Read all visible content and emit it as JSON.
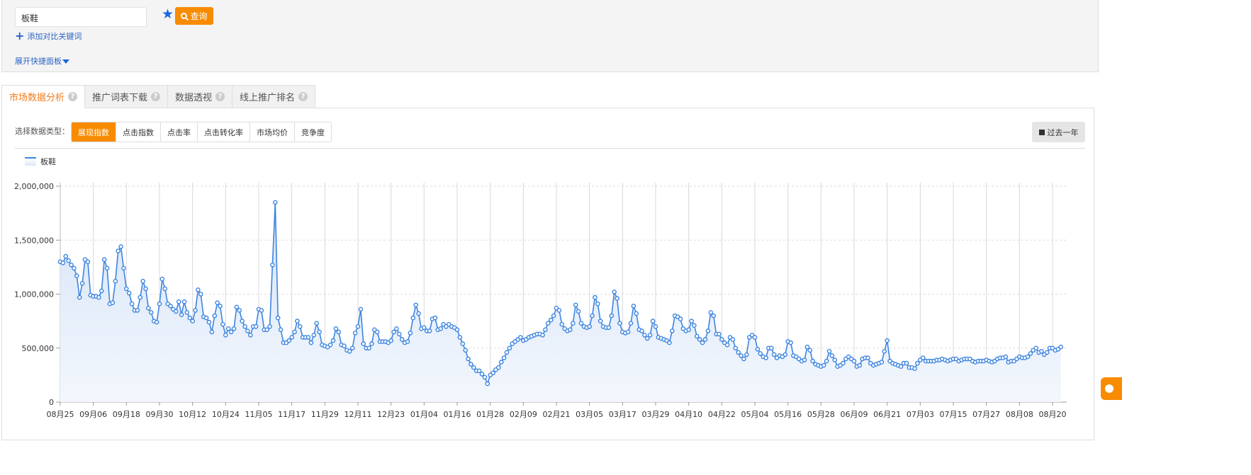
{
  "search": {
    "keyword": "板鞋",
    "query_label": "查询",
    "add_compare_label": "添加对比关键词",
    "expand_panel_label": "展开快捷面板"
  },
  "tabs": [
    {
      "label": "市场数据分析",
      "active": true
    },
    {
      "label": "推广词表下载",
      "active": false
    },
    {
      "label": "数据透视",
      "active": false
    },
    {
      "label": "线上推广排名",
      "active": false
    }
  ],
  "help_glyph": "?",
  "data_type": {
    "label": "选择数据类型：",
    "options": [
      "展现指数",
      "点击指数",
      "点击率",
      "点击转化率",
      "市场均价",
      "竞争度"
    ],
    "selected": "展现指数"
  },
  "range_button": "过去一年",
  "colors": {
    "accent": "#f88b00",
    "series": "#3d85e0",
    "link": "#2a64c8"
  },
  "chart_data": {
    "type": "area",
    "legend": [
      "板鞋"
    ],
    "legend_position": "top-left",
    "series": [
      {
        "name": "板鞋",
        "values": [
          1300000,
          1290000,
          1350000,
          1310000,
          1270000,
          1240000,
          1170000,
          970000,
          1100000,
          1320000,
          1300000,
          990000,
          980000,
          980000,
          970000,
          1030000,
          1320000,
          1240000,
          910000,
          920000,
          1120000,
          1400000,
          1440000,
          1240000,
          1050000,
          1010000,
          910000,
          850000,
          850000,
          970000,
          1120000,
          1050000,
          870000,
          830000,
          750000,
          740000,
          910000,
          1140000,
          1050000,
          910000,
          890000,
          860000,
          840000,
          930000,
          810000,
          930000,
          830000,
          780000,
          750000,
          850000,
          1040000,
          1000000,
          790000,
          780000,
          740000,
          650000,
          800000,
          920000,
          890000,
          720000,
          620000,
          680000,
          650000,
          680000,
          880000,
          850000,
          750000,
          700000,
          660000,
          620000,
          700000,
          700000,
          860000,
          850000,
          670000,
          670000,
          700000,
          1270000,
          1850000,
          780000,
          670000,
          550000,
          550000,
          570000,
          600000,
          650000,
          750000,
          700000,
          600000,
          600000,
          600000,
          550000,
          620000,
          730000,
          650000,
          530000,
          520000,
          510000,
          530000,
          570000,
          680000,
          650000,
          530000,
          520000,
          480000,
          470000,
          500000,
          640000,
          700000,
          860000,
          540000,
          500000,
          500000,
          540000,
          670000,
          650000,
          560000,
          560000,
          560000,
          550000,
          570000,
          650000,
          680000,
          630000,
          580000,
          550000,
          560000,
          640000,
          780000,
          900000,
          820000,
          680000,
          690000,
          660000,
          660000,
          770000,
          780000,
          670000,
          680000,
          720000,
          700000,
          720000,
          700000,
          690000,
          670000,
          600000,
          540000,
          480000,
          400000,
          350000,
          320000,
          290000,
          290000,
          260000,
          230000,
          170000,
          250000,
          270000,
          300000,
          320000,
          370000,
          410000,
          460000,
          500000,
          540000,
          560000,
          580000,
          600000,
          570000,
          580000,
          600000,
          610000,
          620000,
          630000,
          630000,
          620000,
          670000,
          730000,
          760000,
          800000,
          870000,
          850000,
          720000,
          680000,
          660000,
          670000,
          730000,
          900000,
          840000,
          730000,
          700000,
          690000,
          700000,
          800000,
          970000,
          910000,
          750000,
          700000,
          690000,
          690000,
          800000,
          1020000,
          960000,
          730000,
          650000,
          640000,
          650000,
          730000,
          890000,
          820000,
          670000,
          660000,
          620000,
          590000,
          620000,
          750000,
          700000,
          600000,
          590000,
          580000,
          570000,
          550000,
          660000,
          800000,
          790000,
          770000,
          680000,
          660000,
          670000,
          750000,
          710000,
          610000,
          580000,
          550000,
          580000,
          660000,
          830000,
          800000,
          630000,
          630000,
          580000,
          550000,
          530000,
          600000,
          580000,
          500000,
          460000,
          430000,
          400000,
          440000,
          600000,
          620000,
          600000,
          490000,
          450000,
          420000,
          410000,
          500000,
          500000,
          440000,
          410000,
          430000,
          420000,
          440000,
          560000,
          550000,
          430000,
          420000,
          400000,
          380000,
          390000,
          510000,
          480000,
          380000,
          350000,
          340000,
          330000,
          340000,
          380000,
          470000,
          430000,
          390000,
          330000,
          340000,
          360000,
          400000,
          420000,
          400000,
          380000,
          330000,
          340000,
          400000,
          410000,
          410000,
          360000,
          340000,
          350000,
          360000,
          370000,
          470000,
          570000,
          380000,
          360000,
          350000,
          340000,
          330000,
          360000,
          360000,
          320000,
          320000,
          310000,
          360000,
          390000,
          410000,
          380000,
          380000,
          380000,
          380000,
          390000,
          390000,
          400000,
          390000,
          380000,
          390000,
          400000,
          400000,
          380000,
          390000,
          400000,
          400000,
          400000,
          380000,
          370000,
          380000,
          380000,
          380000,
          390000,
          380000,
          370000,
          380000,
          400000,
          410000,
          410000,
          420000,
          370000,
          380000,
          380000,
          400000,
          420000,
          410000,
          410000,
          420000,
          450000,
          480000,
          500000,
          460000,
          470000,
          440000,
          460000,
          500000,
          500000,
          480000,
          490000,
          510000
        ]
      }
    ],
    "x_tick_labels": [
      "08月25",
      "09月06",
      "09月18",
      "09月30",
      "10月12",
      "10月24",
      "11月05",
      "11月17",
      "11月29",
      "12月11",
      "12月23",
      "01月04",
      "01月16",
      "01月28",
      "02月09",
      "02月21",
      "03月05",
      "03月17",
      "03月29",
      "04月10",
      "04月22",
      "05月04",
      "05月16",
      "05月28",
      "06月09",
      "06月21",
      "07月03",
      "07月15",
      "07月27",
      "08月08",
      "08月20"
    ],
    "x_tick_every_days": 12,
    "y_ticks": [
      0,
      500000,
      1000000,
      1500000,
      2000000
    ],
    "y_tick_labels": [
      "0",
      "500,000",
      "1,000,000",
      "1,500,000",
      "2,000,000"
    ],
    "ylim": [
      0,
      2000000
    ],
    "grid": {
      "x": "solid",
      "y": "dashed"
    }
  }
}
